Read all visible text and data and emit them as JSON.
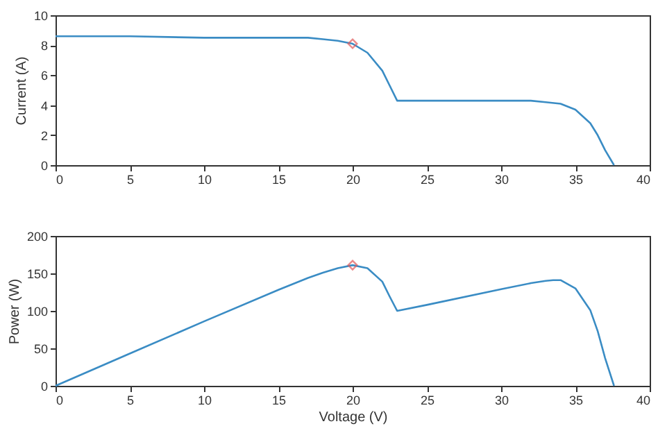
{
  "chart_data": [
    {
      "type": "line",
      "ylabel": "Current (A)",
      "xlim": [
        0,
        40
      ],
      "xticks": [
        0,
        5,
        10,
        15,
        20,
        25,
        30,
        35,
        40
      ],
      "ylim": [
        0,
        10
      ],
      "yticks": [
        0,
        2,
        4,
        6,
        8,
        10
      ],
      "series": [
        {
          "type": "line",
          "color": "#3a8cc4",
          "x": [
            0,
            5,
            10,
            15,
            17,
            18,
            19,
            20,
            21,
            22,
            22.5,
            23,
            25,
            30,
            32,
            33,
            34,
            35,
            36,
            36.5,
            37,
            37.6
          ],
          "values": [
            8.6,
            8.6,
            8.5,
            8.5,
            8.5,
            8.4,
            8.3,
            8.1,
            7.5,
            6.3,
            5.3,
            4.3,
            4.3,
            4.3,
            4.3,
            4.2,
            4.1,
            3.7,
            2.8,
            2.0,
            1.0,
            0
          ]
        },
        {
          "type": "scatter",
          "color": "#e05a5a",
          "marker": "diamond",
          "x": [
            20
          ],
          "values": [
            8.1
          ]
        }
      ]
    },
    {
      "type": "line",
      "xlabel": "Voltage (V)",
      "ylabel": "Power (W)",
      "xlim": [
        0,
        40
      ],
      "xticks": [
        0,
        5,
        10,
        15,
        20,
        25,
        30,
        35,
        40
      ],
      "ylim": [
        0,
        200
      ],
      "yticks": [
        0,
        50,
        100,
        150,
        200
      ],
      "series": [
        {
          "type": "line",
          "color": "#3a8cc4",
          "x": [
            0,
            5,
            10,
            15,
            17,
            18,
            19,
            20,
            21,
            22,
            22.5,
            23,
            25,
            30,
            32,
            33,
            33.5,
            34,
            35,
            36,
            36.5,
            37,
            37.6
          ],
          "values": [
            0,
            43,
            86,
            128,
            144,
            151,
            157,
            161,
            157,
            139,
            119,
            100,
            108,
            129,
            137,
            140,
            141,
            141,
            130,
            101,
            73,
            37,
            0
          ]
        },
        {
          "type": "scatter",
          "color": "#e05a5a",
          "marker": "diamond",
          "x": [
            20
          ],
          "values": [
            161
          ]
        }
      ]
    }
  ]
}
